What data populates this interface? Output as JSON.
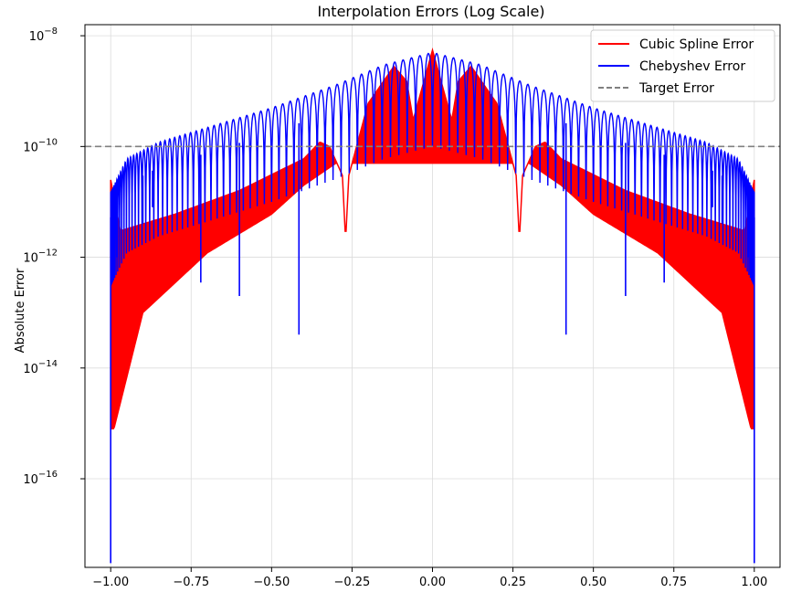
{
  "chart_data": {
    "type": "line",
    "title": "Interpolation Errors (Log Scale)",
    "xlabel": "",
    "ylabel": "Absolute Error",
    "xlim": [
      -1.08,
      1.08
    ],
    "ylim_exp": [
      -17.6,
      -7.8
    ],
    "yscale": "log",
    "grid": true,
    "legend_position": "top-right",
    "x_ticks": [
      -1.0,
      -0.75,
      -0.5,
      -0.25,
      0.0,
      0.25,
      0.5,
      0.75,
      1.0
    ],
    "x_tick_labels": [
      "−1.00",
      "−0.75",
      "−0.50",
      "−0.25",
      "0.00",
      "0.25",
      "0.50",
      "0.75",
      "1.00"
    ],
    "y_ticks": [
      -8,
      -10,
      -12,
      -14,
      -16
    ],
    "y_tick_base": "10",
    "y_tick_exponents": [
      "−8",
      "−10",
      "−12",
      "−14",
      "−16"
    ],
    "series": [
      {
        "name": "Cubic Spline Error",
        "color": "#ff0000",
        "envelope_upper": [
          [
            -1.0,
            2.5e-11
          ],
          [
            -0.97,
            3e-12
          ],
          [
            -0.8,
            6e-12
          ],
          [
            -0.6,
            1.6e-11
          ],
          [
            -0.4,
            6e-11
          ],
          [
            -0.35,
            1.2e-10
          ],
          [
            -0.32,
            1e-10
          ],
          [
            -0.28,
            3e-11
          ],
          [
            -0.27,
            2e-12
          ],
          [
            -0.26,
            3e-11
          ],
          [
            -0.2,
            6e-10
          ],
          [
            -0.12,
            2.8e-09
          ],
          [
            -0.08,
            1.5e-09
          ],
          [
            -0.06,
            3e-10
          ],
          [
            0.0,
            5.5e-09
          ],
          [
            0.06,
            3e-10
          ],
          [
            0.08,
            1.5e-09
          ],
          [
            0.12,
            2.8e-09
          ],
          [
            0.2,
            6e-10
          ],
          [
            0.26,
            3e-11
          ],
          [
            0.27,
            2e-12
          ],
          [
            0.28,
            3e-11
          ],
          [
            0.32,
            1e-10
          ],
          [
            0.35,
            1.2e-10
          ],
          [
            0.4,
            6e-11
          ],
          [
            0.6,
            1.6e-11
          ],
          [
            0.8,
            6e-12
          ],
          [
            0.97,
            3e-12
          ],
          [
            1.0,
            2.5e-11
          ]
        ],
        "envelope_lower": [
          [
            -0.99,
            8e-16
          ],
          [
            -0.9,
            1e-13
          ],
          [
            -0.7,
            1.2e-12
          ],
          [
            -0.5,
            6e-12
          ],
          [
            -0.4,
            2e-11
          ],
          [
            -0.3,
            5e-11
          ],
          [
            0.3,
            5e-11
          ],
          [
            0.4,
            2e-11
          ],
          [
            0.5,
            6e-12
          ],
          [
            0.7,
            1.2e-12
          ],
          [
            0.9,
            1e-13
          ],
          [
            0.99,
            8e-16
          ]
        ]
      },
      {
        "name": "Chebyshev Error",
        "color": "#0000ff",
        "peak_envelope": [
          [
            -1.0,
            1.5e-11
          ],
          [
            -0.95,
            6e-11
          ],
          [
            -0.85,
            1.2e-10
          ],
          [
            -0.7,
            2.2e-10
          ],
          [
            -0.5,
            5e-10
          ],
          [
            -0.3,
            1.3e-09
          ],
          [
            -0.15,
            3e-09
          ],
          [
            0.0,
            5e-09
          ],
          [
            0.15,
            3e-09
          ],
          [
            0.3,
            1.3e-09
          ],
          [
            0.5,
            5e-10
          ],
          [
            0.7,
            2.2e-10
          ],
          [
            0.85,
            1.2e-10
          ],
          [
            0.95,
            6e-11
          ],
          [
            1.0,
            1.5e-11
          ]
        ],
        "oscillations": 120,
        "deep_minima": [
          [
            -1.0,
            3e-18
          ],
          [
            -0.98,
            1e-12
          ],
          [
            -0.9,
            4e-12
          ],
          [
            -0.87,
            8e-12
          ],
          [
            -0.72,
            3.5e-13
          ],
          [
            -0.6,
            2e-13
          ],
          [
            -0.415,
            4e-14
          ],
          [
            0.415,
            4e-14
          ],
          [
            0.6,
            2e-13
          ],
          [
            0.72,
            3.5e-13
          ],
          [
            0.87,
            8e-12
          ],
          [
            0.9,
            4e-12
          ],
          [
            0.98,
            1e-12
          ],
          [
            1.0,
            3e-18
          ]
        ]
      },
      {
        "name": "Target Error",
        "color": "#808080",
        "style": "dashed",
        "value": 1e-10
      }
    ]
  }
}
